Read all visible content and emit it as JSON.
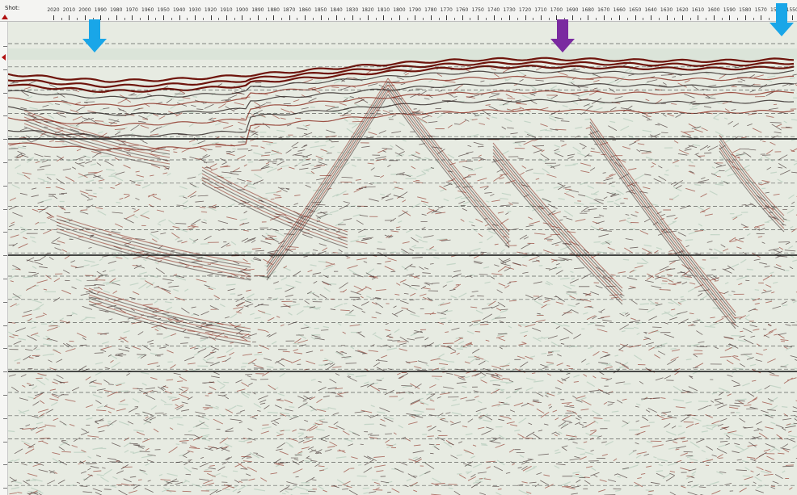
{
  "header": {
    "axis_label": "Shot:",
    "shot_ticks": [
      "2020",
      "2010",
      "2000",
      "1990",
      "1980",
      "1970",
      "1960",
      "1950",
      "1940",
      "1930",
      "1920",
      "1910",
      "1900",
      "1890",
      "1880",
      "1870",
      "1860",
      "1850",
      "1840",
      "1830",
      "1820",
      "1810",
      "1800",
      "1790",
      "1780",
      "1770",
      "1760",
      "1750",
      "1740",
      "1730",
      "1720",
      "1710",
      "1700",
      "1690",
      "1680",
      "1670",
      "1660",
      "1650",
      "1640",
      "1630",
      "1620",
      "1610",
      "1600",
      "1590",
      "1580",
      "1570",
      "1560",
      "1550"
    ]
  },
  "markers": [
    {
      "name": "marker-arrow-left",
      "color": "#19a6e8"
    },
    {
      "name": "marker-arrow-middle",
      "color": "#7a2aa0"
    },
    {
      "name": "marker-arrow-right",
      "color": "#19a6e8"
    }
  ],
  "colors": {
    "background": "#e9ece4",
    "reflector": "#8a1a10",
    "noise_dark": "#5a3a34",
    "noise_light": "#c7d7c9"
  }
}
